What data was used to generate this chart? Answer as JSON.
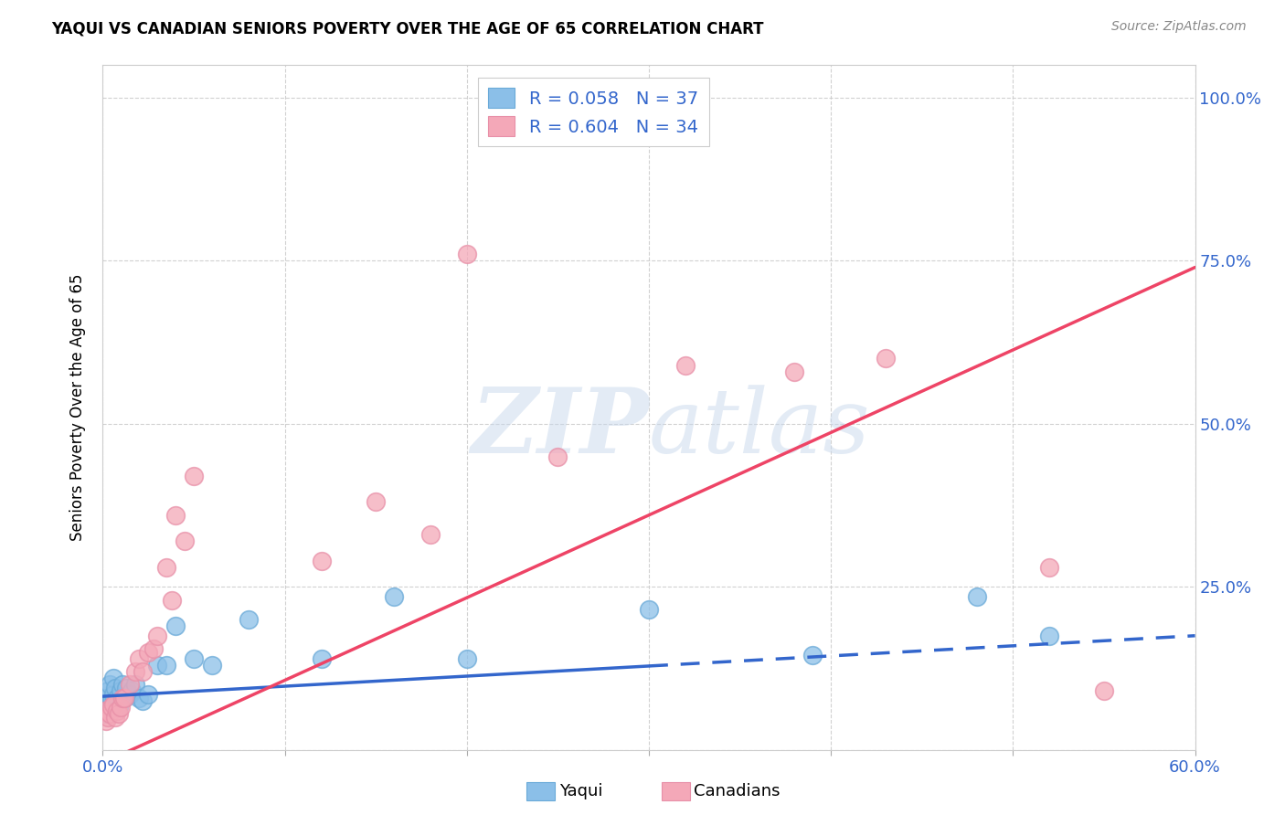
{
  "title": "YAQUI VS CANADIAN SENIORS POVERTY OVER THE AGE OF 65 CORRELATION CHART",
  "source": "Source: ZipAtlas.com",
  "ylabel": "Seniors Poverty Over the Age of 65",
  "xlim": [
    0.0,
    0.6
  ],
  "ylim": [
    0.0,
    1.05
  ],
  "xticks": [
    0.0,
    0.1,
    0.2,
    0.3,
    0.4,
    0.5,
    0.6
  ],
  "xticklabels": [
    "0.0%",
    "",
    "",
    "",
    "",
    "",
    "60.0%"
  ],
  "yticks": [
    0.0,
    0.25,
    0.5,
    0.75,
    1.0
  ],
  "yticklabels_right": [
    "",
    "25.0%",
    "50.0%",
    "75.0%",
    "100.0%"
  ],
  "yaqui_color": "#8BBFE8",
  "yaqui_edge_color": "#6AAAD8",
  "canadian_color": "#F4A8B8",
  "canadian_edge_color": "#E890A8",
  "yaqui_line_color": "#3366CC",
  "canadian_line_color": "#EE4466",
  "background_color": "#FFFFFF",
  "grid_color": "#CCCCCC",
  "watermark_color": "#C8D8EC",
  "legend_R_yaqui": "R = 0.058",
  "legend_N_yaqui": "N = 37",
  "legend_R_canadian": "R = 0.604",
  "legend_N_canadian": "N = 34",
  "yaqui_x": [
    0.001,
    0.002,
    0.002,
    0.003,
    0.003,
    0.004,
    0.004,
    0.005,
    0.006,
    0.006,
    0.007,
    0.007,
    0.008,
    0.009,
    0.01,
    0.011,
    0.012,
    0.013,
    0.015,
    0.016,
    0.018,
    0.02,
    0.022,
    0.025,
    0.03,
    0.035,
    0.04,
    0.05,
    0.06,
    0.08,
    0.12,
    0.16,
    0.2,
    0.3,
    0.39,
    0.48,
    0.52
  ],
  "yaqui_y": [
    0.06,
    0.08,
    0.055,
    0.07,
    0.09,
    0.065,
    0.1,
    0.075,
    0.085,
    0.11,
    0.07,
    0.095,
    0.08,
    0.065,
    0.09,
    0.1,
    0.08,
    0.095,
    0.085,
    0.09,
    0.1,
    0.08,
    0.075,
    0.085,
    0.13,
    0.13,
    0.19,
    0.14,
    0.13,
    0.2,
    0.14,
    0.235,
    0.14,
    0.215,
    0.145,
    0.235,
    0.175
  ],
  "canadian_x": [
    0.001,
    0.002,
    0.003,
    0.004,
    0.005,
    0.006,
    0.007,
    0.008,
    0.009,
    0.01,
    0.011,
    0.012,
    0.015,
    0.018,
    0.02,
    0.022,
    0.025,
    0.028,
    0.03,
    0.035,
    0.038,
    0.04,
    0.045,
    0.05,
    0.12,
    0.15,
    0.18,
    0.2,
    0.25,
    0.32,
    0.38,
    0.43,
    0.52,
    0.55
  ],
  "canadian_y": [
    0.06,
    0.045,
    0.05,
    0.055,
    0.065,
    0.07,
    0.05,
    0.06,
    0.055,
    0.065,
    0.08,
    0.08,
    0.1,
    0.12,
    0.14,
    0.12,
    0.15,
    0.155,
    0.175,
    0.28,
    0.23,
    0.36,
    0.32,
    0.42,
    0.29,
    0.38,
    0.33,
    0.76,
    0.45,
    0.59,
    0.58,
    0.6,
    0.28,
    0.09
  ],
  "yaqui_line_x": [
    0.0,
    0.6
  ],
  "yaqui_line_y": [
    0.082,
    0.175
  ],
  "yaqui_line_solid_end": 0.3,
  "canadian_line_x": [
    0.0,
    0.6
  ],
  "canadian_line_y": [
    -0.02,
    0.74
  ]
}
